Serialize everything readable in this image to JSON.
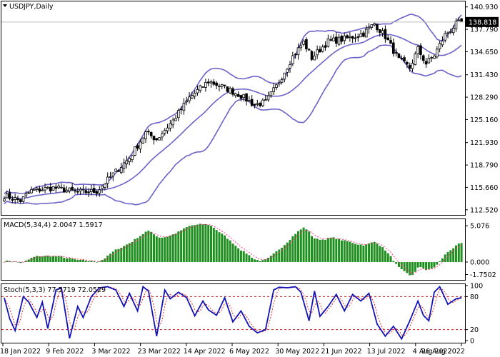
{
  "chart_data": {
    "type": "candlestick",
    "symbol_label": "USDJPY,Daily",
    "last_price": "138.818",
    "price_ticks": [
      "140.930",
      "137.790",
      "134.650",
      "131.430",
      "128.290",
      "125.160",
      "121.930",
      "118.790",
      "115.660",
      "112.520"
    ],
    "price_range": [
      112.0,
      141.5
    ],
    "dates": [
      "18 Jan 2022",
      "9 Feb 2022",
      "3 Mar 2022",
      "23 Mar 2022",
      "14 Apr 2022",
      "6 May 2022",
      "30 May 2022",
      "21 Jun 2022",
      "13 Jul 2022",
      "4 Aug 2022",
      "26 Aug 2022"
    ],
    "bollinger_color": "#6b63c9",
    "price_anchors": [
      [
        0,
        114.5
      ],
      [
        6,
        113.8
      ],
      [
        10,
        115.2
      ],
      [
        18,
        115.6
      ],
      [
        27,
        115.0
      ],
      [
        34,
        115.1
      ],
      [
        40,
        117.5
      ],
      [
        46,
        119.8
      ],
      [
        52,
        123.3
      ],
      [
        56,
        122.4
      ],
      [
        62,
        125.0
      ],
      [
        68,
        128.2
      ],
      [
        75,
        130.5
      ],
      [
        80,
        129.8
      ],
      [
        87,
        128.5
      ],
      [
        92,
        127.2
      ],
      [
        96,
        127.6
      ],
      [
        100,
        129.8
      ],
      [
        106,
        134.0
      ],
      [
        110,
        136.0
      ],
      [
        113,
        133.8
      ],
      [
        119,
        136.1
      ],
      [
        126,
        136.5
      ],
      [
        132,
        137.2
      ],
      [
        136,
        138.6
      ],
      [
        140,
        136.8
      ],
      [
        145,
        133.5
      ],
      [
        149,
        132.4
      ],
      [
        152,
        135.0
      ],
      [
        155,
        133.0
      ],
      [
        158,
        134.2
      ],
      [
        162,
        137.0
      ],
      [
        166,
        138.5
      ],
      [
        168,
        138.8
      ]
    ],
    "macd": {
      "label": "MACD(5,34,4) 2.0047 1.5917",
      "ticks": [
        "5.076",
        "0.000",
        "-1.7502"
      ],
      "range": [
        -2.2,
        5.8
      ],
      "bar_color": "#1f8f1f",
      "signal_color": "#ff3b8a"
    },
    "stoch": {
      "label": "Stoch(5,3,3) 77.5719 72.0529",
      "ticks": [
        "100",
        "80",
        "20",
        "0"
      ],
      "levels": [
        80,
        20
      ],
      "main_color": "#1414b4",
      "signal_color": "#e0342e",
      "anchors": [
        [
          0,
          78
        ],
        [
          2,
          40
        ],
        [
          4,
          18
        ],
        [
          7,
          80
        ],
        [
          9,
          70
        ],
        [
          12,
          42
        ],
        [
          14,
          70
        ],
        [
          16,
          22
        ],
        [
          19,
          92
        ],
        [
          21,
          96
        ],
        [
          24,
          4
        ],
        [
          27,
          62
        ],
        [
          29,
          42
        ],
        [
          32,
          80
        ],
        [
          35,
          96
        ],
        [
          38,
          98
        ],
        [
          41,
          92
        ],
        [
          44,
          62
        ],
        [
          46,
          86
        ],
        [
          49,
          54
        ],
        [
          51,
          98
        ],
        [
          53,
          90
        ],
        [
          56,
          8
        ],
        [
          59,
          92
        ],
        [
          61,
          76
        ],
        [
          64,
          88
        ],
        [
          67,
          78
        ],
        [
          70,
          45
        ],
        [
          73,
          72
        ],
        [
          75,
          56
        ],
        [
          78,
          46
        ],
        [
          81,
          78
        ],
        [
          84,
          34
        ],
        [
          87,
          54
        ],
        [
          90,
          26
        ],
        [
          93,
          14
        ],
        [
          96,
          20
        ],
        [
          99,
          92
        ],
        [
          101,
          97
        ],
        [
          104,
          96
        ],
        [
          107,
          98
        ],
        [
          109,
          88
        ],
        [
          112,
          36
        ],
        [
          114,
          90
        ],
        [
          116,
          44
        ],
        [
          119,
          62
        ],
        [
          122,
          84
        ],
        [
          125,
          54
        ],
        [
          128,
          84
        ],
        [
          131,
          72
        ],
        [
          134,
          86
        ],
        [
          137,
          30
        ],
        [
          140,
          8
        ],
        [
          143,
          26
        ],
        [
          146,
          3
        ],
        [
          149,
          36
        ],
        [
          152,
          72
        ],
        [
          154,
          46
        ],
        [
          156,
          36
        ],
        [
          158,
          88
        ],
        [
          160,
          98
        ],
        [
          163,
          66
        ],
        [
          166,
          76
        ],
        [
          168,
          78
        ]
      ]
    }
  }
}
